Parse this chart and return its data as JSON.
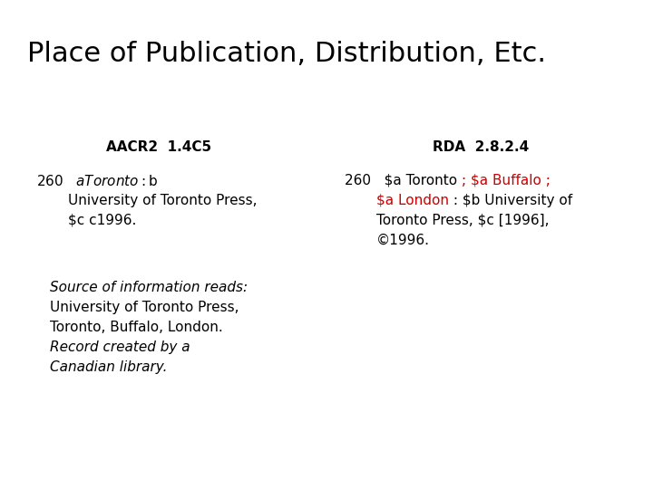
{
  "title": "Place of Publication, Distribution, Etc.",
  "bg_color": "#ffffff",
  "text_color": "#000000",
  "red_color": "#cc0000",
  "title_fontsize": 22,
  "header_fontsize": 11,
  "body_fontsize": 11,
  "aacr2_header": "AACR2  1.4C5",
  "rda_header": "RDA  2.8.2.4"
}
